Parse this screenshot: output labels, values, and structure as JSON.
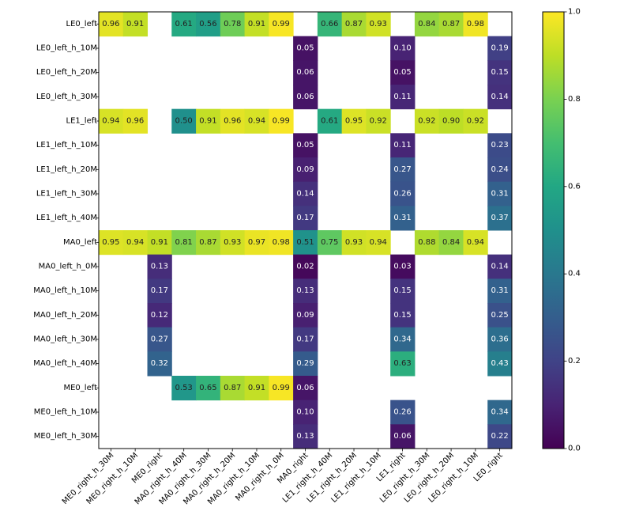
{
  "chart_data": {
    "type": "heatmap",
    "title": "",
    "xlabel": "",
    "ylabel": "",
    "rows": [
      "LE0_left",
      "LE0_left_h_10M",
      "LE0_left_h_20M",
      "LE0_left_h_30M",
      "LE1_left",
      "LE1_left_h_10M",
      "LE1_left_h_20M",
      "LE1_left_h_30M",
      "LE1_left_h_40M",
      "MA0_left",
      "MA0_left_h_0M",
      "MA0_left_h_10M",
      "MA0_left_h_20M",
      "MA0_left_h_30M",
      "MA0_left_h_40M",
      "ME0_left",
      "ME0_left_h_10M",
      "ME0_left_h_30M"
    ],
    "columns": [
      "ME0_right_h_30M",
      "ME0_right_h_10M",
      "ME0_right",
      "MA0_right_h_40M",
      "MA0_right_h_30M",
      "MA0_right_h_20M",
      "MA0_right_h_10M",
      "MA0_right_h_0M",
      "MA0_right",
      "LE1_right_h_40M",
      "LE1_right_h_20M",
      "LE1_right_h_10M",
      "LE1_right",
      "LE0_right_h_30M",
      "LE0_right_h_20M",
      "LE0_right_h_10M",
      "LE0_right"
    ],
    "values": [
      [
        0.96,
        0.91,
        null,
        0.61,
        0.56,
        0.78,
        0.91,
        0.99,
        null,
        0.66,
        0.87,
        0.93,
        null,
        0.84,
        0.87,
        0.98,
        null
      ],
      [
        null,
        null,
        null,
        null,
        null,
        null,
        null,
        null,
        0.05,
        null,
        null,
        null,
        0.1,
        null,
        null,
        null,
        0.19
      ],
      [
        null,
        null,
        null,
        null,
        null,
        null,
        null,
        null,
        0.06,
        null,
        null,
        null,
        0.05,
        null,
        null,
        null,
        0.15
      ],
      [
        null,
        null,
        null,
        null,
        null,
        null,
        null,
        null,
        0.06,
        null,
        null,
        null,
        0.11,
        null,
        null,
        null,
        0.14
      ],
      [
        0.94,
        0.96,
        null,
        0.5,
        0.91,
        0.96,
        0.94,
        0.99,
        null,
        0.61,
        0.95,
        0.92,
        null,
        0.92,
        0.9,
        0.92,
        null
      ],
      [
        null,
        null,
        null,
        null,
        null,
        null,
        null,
        null,
        0.05,
        null,
        null,
        null,
        0.11,
        null,
        null,
        null,
        0.23
      ],
      [
        null,
        null,
        null,
        null,
        null,
        null,
        null,
        null,
        0.09,
        null,
        null,
        null,
        0.27,
        null,
        null,
        null,
        0.24
      ],
      [
        null,
        null,
        null,
        null,
        null,
        null,
        null,
        null,
        0.14,
        null,
        null,
        null,
        0.26,
        null,
        null,
        null,
        0.31
      ],
      [
        null,
        null,
        null,
        null,
        null,
        null,
        null,
        null,
        0.17,
        null,
        null,
        null,
        0.31,
        null,
        null,
        null,
        0.37
      ],
      [
        0.95,
        0.94,
        0.91,
        0.81,
        0.87,
        0.93,
        0.97,
        0.98,
        0.51,
        0.75,
        0.93,
        0.94,
        null,
        0.88,
        0.84,
        0.94,
        null
      ],
      [
        null,
        null,
        0.13,
        null,
        null,
        null,
        null,
        null,
        0.02,
        null,
        null,
        null,
        0.03,
        null,
        null,
        null,
        0.14
      ],
      [
        null,
        null,
        0.17,
        null,
        null,
        null,
        null,
        null,
        0.13,
        null,
        null,
        null,
        0.15,
        null,
        null,
        null,
        0.31
      ],
      [
        null,
        null,
        0.12,
        null,
        null,
        null,
        null,
        null,
        0.09,
        null,
        null,
        null,
        0.15,
        null,
        null,
        null,
        0.25
      ],
      [
        null,
        null,
        0.27,
        null,
        null,
        null,
        null,
        null,
        0.17,
        null,
        null,
        null,
        0.34,
        null,
        null,
        null,
        0.36
      ],
      [
        null,
        null,
        0.32,
        null,
        null,
        null,
        null,
        null,
        0.29,
        null,
        null,
        null,
        0.63,
        null,
        null,
        null,
        0.43
      ],
      [
        null,
        null,
        null,
        0.53,
        0.65,
        0.87,
        0.91,
        0.99,
        0.06,
        null,
        null,
        null,
        null,
        null,
        null,
        null,
        null
      ],
      [
        null,
        null,
        null,
        null,
        null,
        null,
        null,
        null,
        0.1,
        null,
        null,
        null,
        0.26,
        null,
        null,
        null,
        0.34
      ],
      [
        null,
        null,
        null,
        null,
        null,
        null,
        null,
        null,
        0.13,
        null,
        null,
        null,
        0.06,
        null,
        null,
        null,
        0.22
      ]
    ],
    "value_range": [
      0.0,
      1.0
    ],
    "colormap": "viridis",
    "colorbar": {
      "ticks": [
        0.0,
        0.2,
        0.4,
        0.6,
        0.8,
        1.0
      ],
      "tick_labels": [
        "0.0",
        "0.2",
        "0.4",
        "0.6",
        "0.8",
        "1.0"
      ]
    },
    "grid": false,
    "legend": "colorbar-right"
  }
}
